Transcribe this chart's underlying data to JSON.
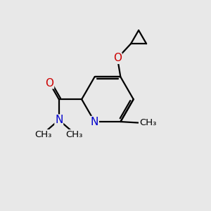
{
  "background_color": "#e8e8e8",
  "atom_color_N": "#0000cc",
  "atom_color_O": "#cc0000",
  "atom_color_C": "#000000",
  "bond_color": "#000000",
  "bond_lw": 1.6,
  "font_size_atom": 11,
  "font_size_methyl": 9.5,
  "fig_w": 3.0,
  "fig_h": 3.0,
  "dpi": 100,
  "xlim": [
    0,
    10
  ],
  "ylim": [
    0,
    10
  ]
}
